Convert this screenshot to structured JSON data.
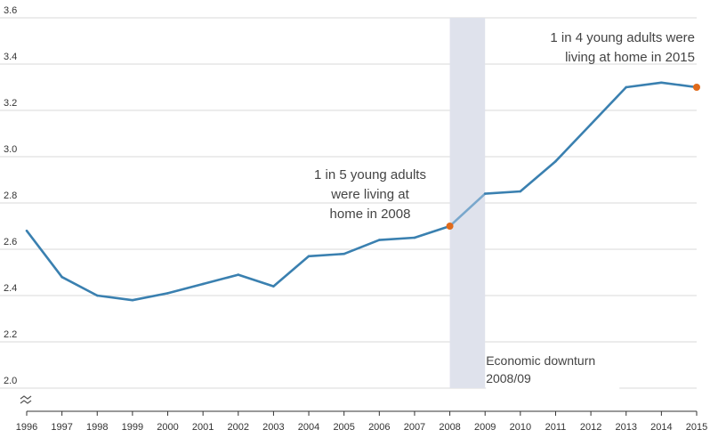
{
  "chart_data": {
    "type": "line",
    "title": "",
    "xlabel": "",
    "ylabel": "",
    "x": [
      "1996",
      "1997",
      "1998",
      "1999",
      "2000",
      "2001",
      "2002",
      "2003",
      "2004",
      "2005",
      "2006",
      "2007",
      "2008",
      "2009",
      "2010",
      "2011",
      "2012",
      "2013",
      "2014",
      "2015"
    ],
    "series": [
      {
        "values": [
          2.68,
          2.48,
          2.4,
          2.38,
          2.41,
          2.45,
          2.49,
          2.44,
          2.57,
          2.58,
          2.64,
          2.65,
          2.7,
          2.84,
          2.85,
          2.98,
          3.14,
          3.3,
          3.32,
          3.3
        ]
      }
    ],
    "ylim": [
      2.0,
      3.6
    ],
    "yticks": [
      "2.0",
      "2.2",
      "2.4",
      "2.6",
      "2.8",
      "3.0",
      "3.2",
      "3.4",
      "3.6"
    ],
    "y_axis_break": true,
    "grid": "horizontal",
    "shaded_region": {
      "from": "2008",
      "to": "2009",
      "label_lines": [
        "Economic downturn",
        "2008/09"
      ]
    },
    "highlight_points": [
      {
        "x": "2008",
        "y": 2.7,
        "label_lines": [
          "1 in 5 young adults",
          "were living at",
          "home in 2008"
        ]
      },
      {
        "x": "2015",
        "y": 3.3,
        "label_lines": [
          "1 in 4 young adults were",
          "living at home in 2015"
        ]
      }
    ],
    "colors": {
      "line": "#3a80b0",
      "highlight_segment": "#79a7cc",
      "marker": "#e06a1b",
      "shade": "#dfe2ec",
      "grid": "#d9d9d9"
    }
  }
}
